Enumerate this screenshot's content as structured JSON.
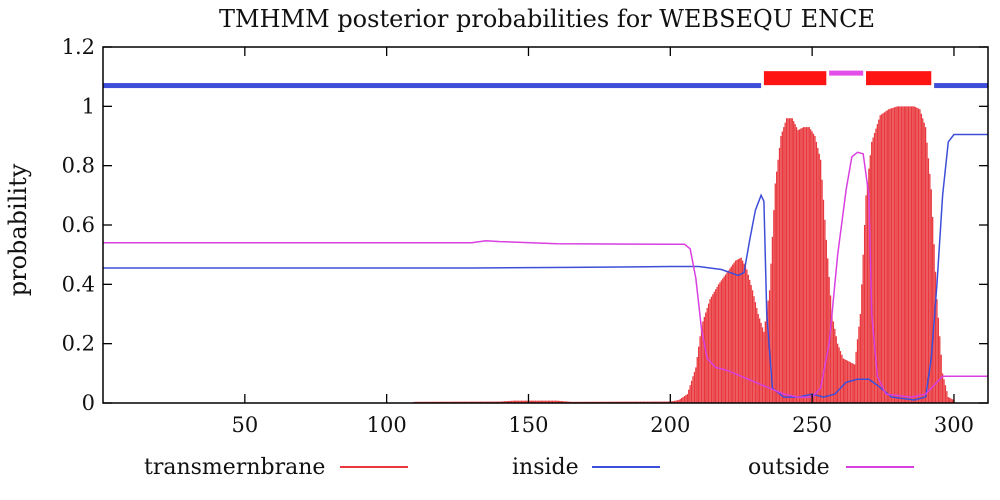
{
  "chart_data": {
    "type": "line",
    "title": "TMHMM posterior probabilities for WEBSEQU ENCE",
    "xlabel": "",
    "ylabel": "probability",
    "xlim": [
      0,
      312
    ],
    "ylim": [
      0,
      1.2
    ],
    "xticks": [
      50,
      100,
      150,
      200,
      250,
      300
    ],
    "yticks": [
      0,
      0.2,
      0.4,
      0.6,
      0.8,
      1,
      1.2
    ],
    "grid": false,
    "legend_position": "bottom",
    "tm_bar_density": 2,
    "series": [
      {
        "name": "transmernbrane",
        "style": "impulses",
        "color": "#e8383d",
        "points": [
          [
            0,
            0
          ],
          [
            108,
            0
          ],
          [
            110,
            0.004
          ],
          [
            140,
            0.005
          ],
          [
            145,
            0.008
          ],
          [
            160,
            0.008
          ],
          [
            165,
            0.004
          ],
          [
            200,
            0.005
          ],
          [
            203,
            0.01
          ],
          [
            206,
            0.03
          ],
          [
            209,
            0.12
          ],
          [
            211,
            0.26
          ],
          [
            214,
            0.35
          ],
          [
            217,
            0.4
          ],
          [
            220,
            0.44
          ],
          [
            223,
            0.48
          ],
          [
            225,
            0.49
          ],
          [
            227,
            0.45
          ],
          [
            229,
            0.38
          ],
          [
            231,
            0.3
          ],
          [
            233,
            0.24
          ],
          [
            235,
            0.38
          ],
          [
            237,
            0.74
          ],
          [
            239,
            0.9
          ],
          [
            241,
            0.96
          ],
          [
            243,
            0.96
          ],
          [
            245,
            0.92
          ],
          [
            247,
            0.93
          ],
          [
            249,
            0.93
          ],
          [
            251,
            0.9
          ],
          [
            253,
            0.82
          ],
          [
            255,
            0.55
          ],
          [
            257,
            0.3
          ],
          [
            259,
            0.2
          ],
          [
            261,
            0.15
          ],
          [
            263,
            0.14
          ],
          [
            265,
            0.13
          ],
          [
            267,
            0.3
          ],
          [
            269,
            0.7
          ],
          [
            271,
            0.88
          ],
          [
            274,
            0.97
          ],
          [
            277,
            0.99
          ],
          [
            280,
            1.0
          ],
          [
            283,
            1.0
          ],
          [
            286,
            1.0
          ],
          [
            288,
            0.99
          ],
          [
            290,
            0.93
          ],
          [
            292,
            0.72
          ],
          [
            294,
            0.35
          ],
          [
            296,
            0.1
          ],
          [
            298,
            0.02
          ],
          [
            300,
            0.01
          ]
        ]
      },
      {
        "name": "inside",
        "style": "line",
        "color": "#3d4fd8",
        "points": [
          [
            0,
            0.455
          ],
          [
            130,
            0.455
          ],
          [
            165,
            0.457
          ],
          [
            200,
            0.46
          ],
          [
            210,
            0.46
          ],
          [
            218,
            0.45
          ],
          [
            224,
            0.43
          ],
          [
            226,
            0.44
          ],
          [
            228,
            0.55
          ],
          [
            230,
            0.65
          ],
          [
            232,
            0.7
          ],
          [
            233,
            0.68
          ],
          [
            234,
            0.3
          ],
          [
            236,
            0.05
          ],
          [
            240,
            0.02
          ],
          [
            245,
            0.02
          ],
          [
            250,
            0.03
          ],
          [
            254,
            0.02
          ],
          [
            258,
            0.03
          ],
          [
            262,
            0.07
          ],
          [
            266,
            0.08
          ],
          [
            270,
            0.08
          ],
          [
            273,
            0.06
          ],
          [
            278,
            0.02
          ],
          [
            286,
            0.01
          ],
          [
            290,
            0.02
          ],
          [
            292,
            0.15
          ],
          [
            294,
            0.4
          ],
          [
            296,
            0.7
          ],
          [
            298,
            0.88
          ],
          [
            300,
            0.905
          ],
          [
            312,
            0.905
          ]
        ]
      },
      {
        "name": "outside",
        "style": "line",
        "color": "#d840e0",
        "points": [
          [
            0,
            0.54
          ],
          [
            130,
            0.54
          ],
          [
            135,
            0.547
          ],
          [
            140,
            0.544
          ],
          [
            160,
            0.537
          ],
          [
            200,
            0.535
          ],
          [
            205,
            0.535
          ],
          [
            207,
            0.52
          ],
          [
            209,
            0.42
          ],
          [
            211,
            0.25
          ],
          [
            213,
            0.15
          ],
          [
            216,
            0.12
          ],
          [
            220,
            0.11
          ],
          [
            225,
            0.09
          ],
          [
            230,
            0.07
          ],
          [
            235,
            0.05
          ],
          [
            240,
            0.03
          ],
          [
            245,
            0.02
          ],
          [
            250,
            0.02
          ],
          [
            253,
            0.05
          ],
          [
            256,
            0.2
          ],
          [
            259,
            0.5
          ],
          [
            262,
            0.72
          ],
          [
            264,
            0.83
          ],
          [
            266,
            0.845
          ],
          [
            268,
            0.84
          ],
          [
            270,
            0.7
          ],
          [
            271,
            0.3
          ],
          [
            273,
            0.09
          ],
          [
            276,
            0.03
          ],
          [
            285,
            0.02
          ],
          [
            290,
            0.03
          ],
          [
            293,
            0.06
          ],
          [
            296,
            0.09
          ],
          [
            312,
            0.09
          ]
        ]
      }
    ],
    "topology": {
      "y": 1.07,
      "segments": [
        {
          "region": "inside",
          "start": 0,
          "end": 232,
          "color": "#3d4fd8"
        },
        {
          "region": "transmembrane",
          "start": 233,
          "end": 255,
          "color": "#ff1414"
        },
        {
          "region": "outside",
          "start": 256,
          "end": 268,
          "color": "#e44ee8"
        },
        {
          "region": "transmembrane",
          "start": 269,
          "end": 292,
          "color": "#ff1414"
        },
        {
          "region": "inside",
          "start": 293,
          "end": 312,
          "color": "#3d4fd8"
        }
      ]
    }
  }
}
